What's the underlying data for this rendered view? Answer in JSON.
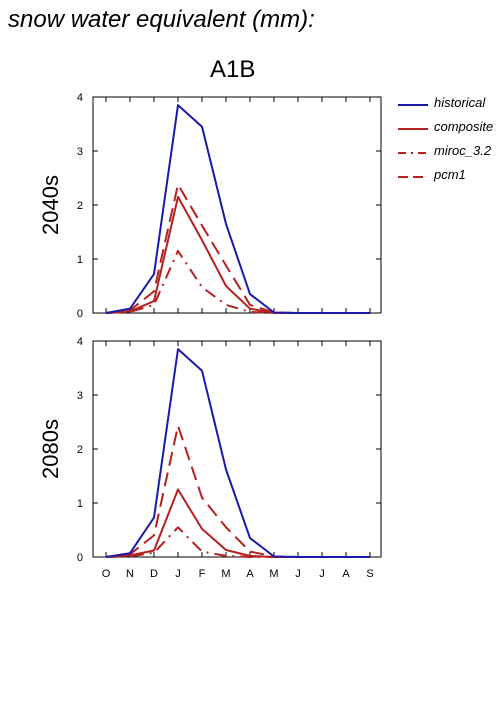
{
  "header": {
    "title": "snow water equivalent (mm):",
    "scenario": "A1B"
  },
  "colors": {
    "historical": "#1a1aaa",
    "future": "#b52020"
  },
  "chart_data": [
    {
      "type": "line",
      "panel_label": "2040s",
      "categories": [
        "O",
        "N",
        "D",
        "J",
        "F",
        "M",
        "A",
        "M",
        "J",
        "J",
        "A",
        "S"
      ],
      "ylim": [
        0,
        4
      ],
      "yticks": [
        "0",
        "1",
        "2",
        "3",
        "4"
      ],
      "series": [
        {
          "name": "historical",
          "values": [
            0,
            0.08,
            0.72,
            3.85,
            3.45,
            1.65,
            0.35,
            0.01,
            0,
            0,
            0,
            0
          ]
        },
        {
          "name": "composite",
          "values": [
            0,
            0.03,
            0.22,
            2.15,
            1.35,
            0.5,
            0.08,
            0,
            0,
            0,
            0,
            0
          ]
        },
        {
          "name": "miroc_3.2",
          "values": [
            0,
            0.02,
            0.15,
            1.15,
            0.48,
            0.15,
            0.02,
            0,
            0,
            0,
            0,
            0
          ]
        },
        {
          "name": "pcm1",
          "values": [
            0,
            0.05,
            0.4,
            2.38,
            1.62,
            0.88,
            0.15,
            0.01,
            0,
            0,
            0,
            0
          ]
        }
      ]
    },
    {
      "type": "line",
      "panel_label": "2080s",
      "categories": [
        "O",
        "N",
        "D",
        "J",
        "F",
        "M",
        "A",
        "M",
        "J",
        "J",
        "A",
        "S"
      ],
      "ylim": [
        0,
        4
      ],
      "yticks": [
        "0",
        "1",
        "2",
        "3",
        "4"
      ],
      "series": [
        {
          "name": "historical",
          "values": [
            0,
            0.07,
            0.73,
            3.85,
            3.45,
            1.62,
            0.35,
            0.01,
            0,
            0,
            0,
            0
          ]
        },
        {
          "name": "composite",
          "values": [
            0,
            0.03,
            0.12,
            1.25,
            0.52,
            0.13,
            0.02,
            0,
            0,
            0,
            0,
            0
          ]
        },
        {
          "name": "miroc_3.2",
          "values": [
            0,
            0.01,
            0.08,
            0.55,
            0.1,
            0.02,
            0,
            0,
            0,
            0,
            0,
            0
          ]
        },
        {
          "name": "pcm1",
          "values": [
            0,
            0.05,
            0.4,
            2.43,
            1.1,
            0.55,
            0.1,
            0.01,
            0,
            0,
            0,
            0
          ]
        }
      ]
    }
  ],
  "legend": [
    {
      "label": "historical",
      "style": "solid",
      "color": "#1a1aaa"
    },
    {
      "label": "composite",
      "style": "solid",
      "color": "#b52020"
    },
    {
      "label": "miroc_3.2",
      "style": "dashdot",
      "color": "#b52020"
    },
    {
      "label": "pcm1",
      "style": "dashed",
      "color": "#b52020"
    }
  ]
}
